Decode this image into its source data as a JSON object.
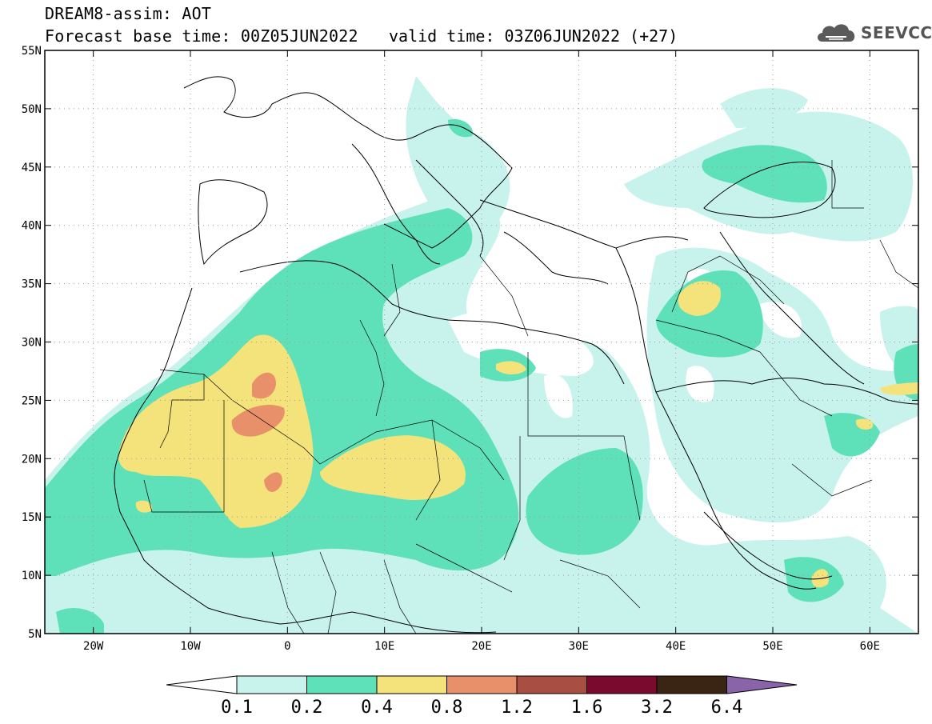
{
  "header": {
    "title": "DREAM8-assim: AOT",
    "base_time": "Forecast base time: 00Z05JUN2022",
    "valid_time": "valid time: 03Z06JUN2022 (+27)"
  },
  "logo": {
    "text": "SEEVCCC",
    "icon": "cloud-logo-icon"
  },
  "map": {
    "lon_range": [
      -25,
      65
    ],
    "lat_range": [
      5,
      55
    ],
    "lat_ticks": [
      {
        "value": 55,
        "label": "55N"
      },
      {
        "value": 50,
        "label": "50N"
      },
      {
        "value": 45,
        "label": "45N"
      },
      {
        "value": 40,
        "label": "40N"
      },
      {
        "value": 35,
        "label": "35N"
      },
      {
        "value": 30,
        "label": "30N"
      },
      {
        "value": 25,
        "label": "25N"
      },
      {
        "value": 20,
        "label": "20N"
      },
      {
        "value": 15,
        "label": "15N"
      },
      {
        "value": 10,
        "label": "10N"
      },
      {
        "value": 5,
        "label": "5N"
      }
    ],
    "lon_ticks": [
      {
        "value": -20,
        "label": "20W"
      },
      {
        "value": -10,
        "label": "10W"
      },
      {
        "value": 0,
        "label": "0"
      },
      {
        "value": 10,
        "label": "10E"
      },
      {
        "value": 20,
        "label": "20E"
      },
      {
        "value": 30,
        "label": "30E"
      },
      {
        "value": 40,
        "label": "40E"
      },
      {
        "value": 50,
        "label": "50E"
      },
      {
        "value": 60,
        "label": "60E"
      }
    ]
  },
  "colorbar": {
    "levels": [
      "0.1",
      "0.2",
      "0.4",
      "0.8",
      "1.2",
      "1.6",
      "3.2",
      "6.4"
    ],
    "colors": [
      "#ffffff",
      "#c8f2ec",
      "#5ee0b8",
      "#f4e27a",
      "#e8906a",
      "#a84e42",
      "#7a0a2e",
      "#3a2414",
      "#8a64a8"
    ]
  }
}
